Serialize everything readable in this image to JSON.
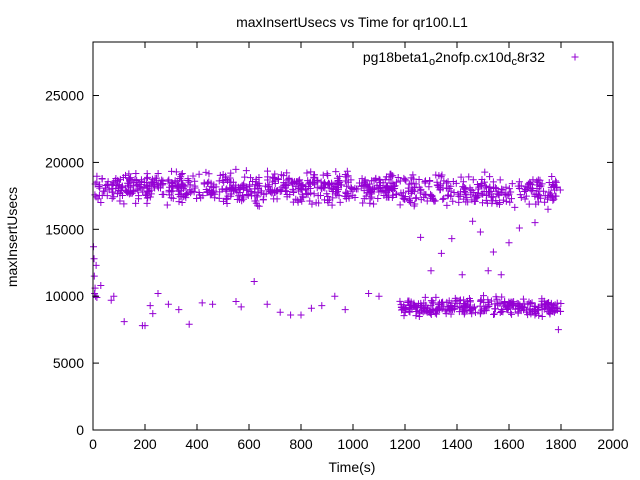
{
  "chart_data": {
    "type": "scatter",
    "title": "maxInsertUsecs vs Time for qr100.L1",
    "xlabel": "Time(s)",
    "ylabel": "maxInsertUsecs",
    "xlim": [
      0,
      2000
    ],
    "ylim": [
      0,
      29000
    ],
    "x_ticks": [
      "0",
      "200",
      "400",
      "600",
      "800",
      "1000",
      "1200",
      "1400",
      "1600",
      "1800",
      "2000"
    ],
    "y_ticks": [
      "0",
      "5000",
      "10000",
      "15000",
      "20000",
      "25000"
    ],
    "legend_position": "top-right",
    "grid": false,
    "marker": "+",
    "series": [
      {
        "name": "pg18beta1_o2nofp.cx10d_c8r32",
        "legend_parts": [
          "pg18beta1",
          "o",
          "2nofp.cx10d",
          "c",
          "8r32"
        ],
        "color": "#9400d3",
        "bands": [
          {
            "x_start": 5,
            "x_end": 1180,
            "y_center": 18100,
            "y_spread": 1600,
            "points": 620
          },
          {
            "x_start": 1180,
            "x_end": 1800,
            "y_center": 17800,
            "y_spread": 1700,
            "points": 260
          },
          {
            "x_start": 1180,
            "x_end": 1800,
            "y_center": 9200,
            "y_spread": 1000,
            "points": 300
          }
        ],
        "outliers": [
          [
            2,
            13700
          ],
          [
            4,
            12800
          ],
          [
            5,
            11500
          ],
          [
            6,
            10200
          ],
          [
            8,
            10600
          ],
          [
            10,
            10000
          ],
          [
            12,
            12300
          ],
          [
            15,
            9900
          ],
          [
            30,
            10800
          ],
          [
            70,
            9700
          ],
          [
            80,
            10000
          ],
          [
            120,
            8100
          ],
          [
            190,
            7800
          ],
          [
            200,
            7800
          ],
          [
            220,
            9300
          ],
          [
            230,
            8700
          ],
          [
            250,
            10200
          ],
          [
            290,
            9400
          ],
          [
            330,
            9000
          ],
          [
            370,
            7900
          ],
          [
            420,
            9500
          ],
          [
            460,
            9400
          ],
          [
            550,
            9600
          ],
          [
            570,
            9200
          ],
          [
            620,
            11100
          ],
          [
            670,
            9400
          ],
          [
            720,
            8800
          ],
          [
            760,
            8600
          ],
          [
            800,
            8600
          ],
          [
            840,
            9100
          ],
          [
            880,
            9300
          ],
          [
            930,
            10000
          ],
          [
            970,
            9000
          ],
          [
            1060,
            10200
          ],
          [
            1100,
            10000
          ],
          [
            1260,
            14400
          ],
          [
            1300,
            11900
          ],
          [
            1340,
            13200
          ],
          [
            1380,
            14300
          ],
          [
            1420,
            11600
          ],
          [
            1460,
            15600
          ],
          [
            1490,
            14800
          ],
          [
            1520,
            11900
          ],
          [
            1540,
            13300
          ],
          [
            1570,
            11600
          ],
          [
            1600,
            14000
          ],
          [
            1640,
            15100
          ],
          [
            1700,
            15500
          ],
          [
            1750,
            16500
          ],
          [
            1790,
            7500
          ]
        ]
      }
    ]
  }
}
